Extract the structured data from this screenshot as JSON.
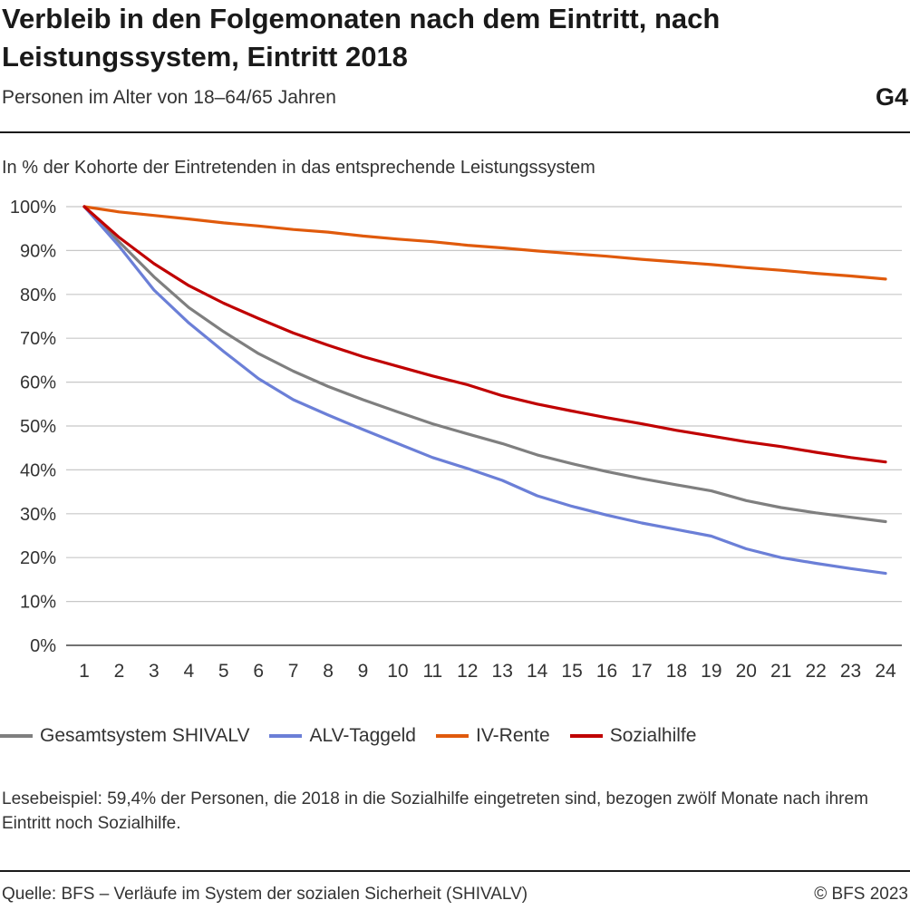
{
  "header": {
    "title": "Verbleib in den Folgemonaten nach dem Eintritt, nach Leistungssystem, Eintritt 2018",
    "subtitle": "Personen im Alter von 18–64/65 Jahren",
    "code": "G4"
  },
  "note": "Lesebeispiel: 59,4% der Personen, die 2018 in die Sozialhilfe eingetreten sind, bezogen zwölf Monate nach ihrem Eintritt noch Sozialhilfe.",
  "footer": {
    "source": "Quelle: BFS – Verläufe im System der sozialen Sicherheit (SHIVALV)",
    "copyright": "© BFS 2023"
  },
  "chart_data": {
    "type": "line",
    "title": "Verbleib in den Folgemonaten nach dem Eintritt, nach Leistungssystem, Eintritt 2018",
    "ylabel": "In % der Kohorte der Eintretenden in das entsprechende Leistungssystem",
    "xlabel": "",
    "x": [
      1,
      2,
      3,
      4,
      5,
      6,
      7,
      8,
      9,
      10,
      11,
      12,
      13,
      14,
      15,
      16,
      17,
      18,
      19,
      20,
      21,
      22,
      23,
      24
    ],
    "ylim": [
      0,
      100
    ],
    "yticks": [
      0,
      10,
      20,
      30,
      40,
      50,
      60,
      70,
      80,
      90,
      100
    ],
    "ytick_labels": [
      "0%",
      "10%",
      "20%",
      "30%",
      "40%",
      "50%",
      "60%",
      "70%",
      "80%",
      "90%",
      "100%"
    ],
    "grid": true,
    "legend_position": "bottom",
    "series": [
      {
        "name": "Gesamtsystem SHIVALV",
        "color": "#7f7f7f",
        "values": [
          100,
          92.0,
          84.0,
          77.0,
          71.5,
          66.5,
          62.5,
          59.0,
          56.0,
          53.2,
          50.5,
          48.2,
          46.0,
          43.4,
          41.4,
          39.6,
          38.0,
          36.6,
          35.2,
          33.0,
          31.4,
          30.2,
          29.2,
          28.2
        ]
      },
      {
        "name": "ALV-Taggeld",
        "color": "#6b7fd7",
        "values": [
          100,
          91.0,
          81.0,
          73.5,
          67.0,
          60.8,
          56.0,
          52.5,
          49.2,
          46.0,
          42.8,
          40.3,
          37.6,
          34.1,
          31.7,
          29.7,
          27.9,
          26.4,
          24.9,
          22.0,
          20.0,
          18.7,
          17.5,
          16.4
        ]
      },
      {
        "name": "IV-Rente",
        "color": "#e05a0c",
        "values": [
          100,
          98.8,
          98.0,
          97.2,
          96.3,
          95.6,
          94.8,
          94.2,
          93.3,
          92.6,
          92.0,
          91.2,
          90.6,
          89.9,
          89.3,
          88.7,
          88.0,
          87.4,
          86.8,
          86.1,
          85.5,
          84.8,
          84.2,
          83.5
        ]
      },
      {
        "name": "Sozialhilfe",
        "color": "#c00000",
        "values": [
          100,
          93.0,
          87.0,
          82.0,
          78.0,
          74.5,
          71.2,
          68.4,
          65.8,
          63.6,
          61.4,
          59.4,
          56.9,
          55.0,
          53.4,
          51.9,
          50.5,
          49.0,
          47.7,
          46.4,
          45.3,
          44.0,
          42.8,
          41.8
        ]
      }
    ]
  }
}
